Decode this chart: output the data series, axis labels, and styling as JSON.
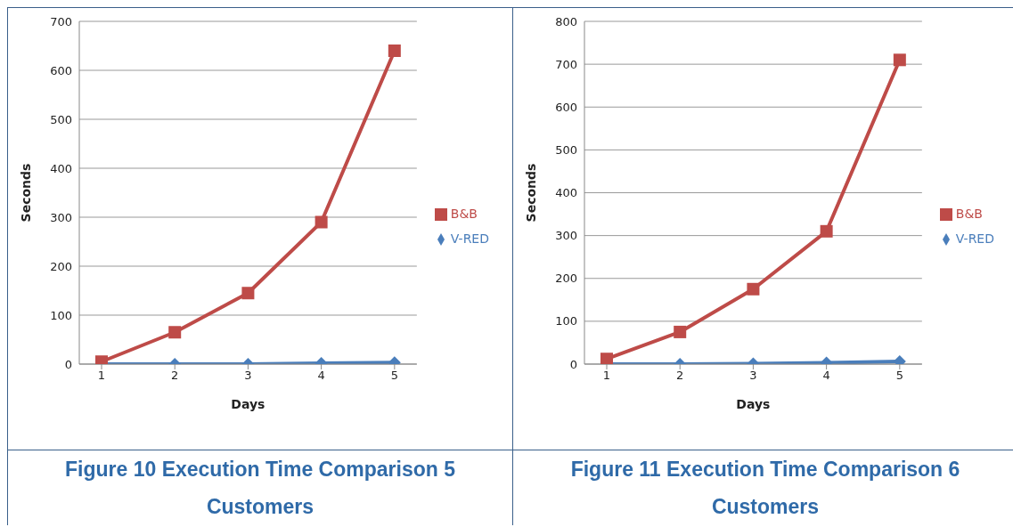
{
  "chart_data": [
    {
      "type": "line",
      "xlabel": "Days",
      "ylabel": "Seconds",
      "categories": [
        "1",
        "2",
        "3",
        "4",
        "5"
      ],
      "series": [
        {
          "name": "V-RED",
          "color": "#4a7ebb",
          "marker": "diamond",
          "values": [
            0,
            0,
            0,
            2,
            3
          ]
        },
        {
          "name": "B&B",
          "color": "#be4b48",
          "marker": "square",
          "values": [
            5,
            65,
            145,
            290,
            640
          ]
        }
      ],
      "ylim": [
        0,
        700
      ],
      "yticks": [
        0,
        100,
        200,
        300,
        400,
        500,
        600,
        700
      ],
      "grid": "y",
      "legend": "right",
      "annotations": [
        "Figure 10 Execution Time Comparison 5 Customers"
      ]
    },
    {
      "type": "line",
      "xlabel": "Days",
      "ylabel": "Seconds",
      "categories": [
        "1",
        "2",
        "3",
        "4",
        "5"
      ],
      "series": [
        {
          "name": "V-RED",
          "color": "#4a7ebb",
          "marker": "diamond",
          "values": [
            0,
            0,
            1,
            3,
            6
          ]
        },
        {
          "name": "B&B",
          "color": "#be4b48",
          "marker": "square",
          "values": [
            12,
            75,
            175,
            310,
            710
          ]
        }
      ],
      "ylim": [
        0,
        800
      ],
      "yticks": [
        0,
        100,
        200,
        300,
        400,
        500,
        600,
        700,
        800
      ],
      "grid": "y",
      "legend": "right",
      "annotations": [
        "Figure 11 Execution Time Comparison 6 Customers"
      ]
    }
  ]
}
